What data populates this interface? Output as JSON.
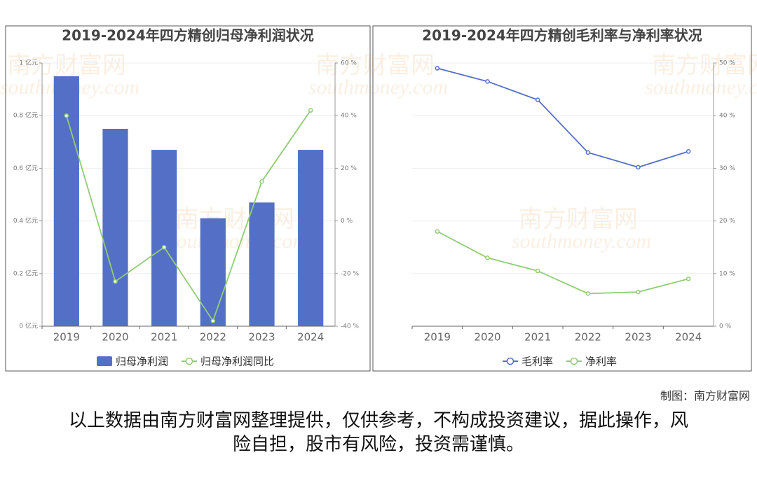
{
  "chart_data": [
    {
      "type": "bar",
      "title": "2019-2024年四方精创归母净利润状况",
      "categories": [
        "2019",
        "2020",
        "2021",
        "2022",
        "2023",
        "2024"
      ],
      "series": [
        {
          "name": "归母净利润",
          "type": "bar",
          "color": "#5470c6",
          "values": [
            0.95,
            0.75,
            0.67,
            0.41,
            0.47,
            0.67
          ]
        },
        {
          "name": "归母净利润同比",
          "type": "line",
          "axis": "y2",
          "color": "#91cc75",
          "values": [
            40,
            -23,
            -10,
            -38,
            15,
            42
          ]
        }
      ],
      "ylim": [
        0,
        1
      ],
      "yticks": [
        {
          "value": 0,
          "label": "0 亿元"
        },
        {
          "value": 0.2,
          "label": "0.2 亿元"
        },
        {
          "value": 0.4,
          "label": "0.4 亿元"
        },
        {
          "value": 0.6,
          "label": "0.6 亿元"
        },
        {
          "value": 0.8,
          "label": "0.8 亿元"
        },
        {
          "value": 1,
          "label": "1 亿元"
        }
      ],
      "y2lim": [
        -40,
        60
      ],
      "y2ticks": [
        {
          "value": -40,
          "label": "-40 %"
        },
        {
          "value": -20,
          "label": "-20 %"
        },
        {
          "value": 0,
          "label": "0 %"
        },
        {
          "value": 20,
          "label": "20 %"
        },
        {
          "value": 40,
          "label": "40 %"
        },
        {
          "value": 60,
          "label": "60 %"
        }
      ],
      "grid": true
    },
    {
      "type": "line",
      "title": "2019-2024年四方精创毛利率与净利率状况",
      "categories": [
        "2019",
        "2020",
        "2021",
        "2022",
        "2023",
        "2024"
      ],
      "series": [
        {
          "name": "毛利率",
          "type": "line",
          "axis": "y2",
          "color": "#5470c6",
          "values": [
            49,
            46.5,
            43,
            33,
            30.2,
            33.2
          ]
        },
        {
          "name": "净利率",
          "type": "line",
          "axis": "y2",
          "color": "#91cc75",
          "values": [
            18,
            13,
            10.5,
            6.2,
            6.5,
            9
          ]
        }
      ],
      "y2lim": [
        0,
        50
      ],
      "y2ticks": [
        {
          "value": 0,
          "label": "0 %"
        },
        {
          "value": 10,
          "label": "10 %"
        },
        {
          "value": 20,
          "label": "20 %"
        },
        {
          "value": 30,
          "label": "30 %"
        },
        {
          "value": 40,
          "label": "40 %"
        },
        {
          "value": 50,
          "label": "50 %"
        }
      ],
      "grid": true
    }
  ],
  "watermark": [
    "南方财富网",
    "southmoney.com"
  ],
  "credit": "制图：南方财富网",
  "disclaimer": [
    "以上数据由南方财富网整理提供，仅供参考，不构成投资建议，据此操作，风",
    "险自担，股市有风险，投资需谨慎。"
  ]
}
